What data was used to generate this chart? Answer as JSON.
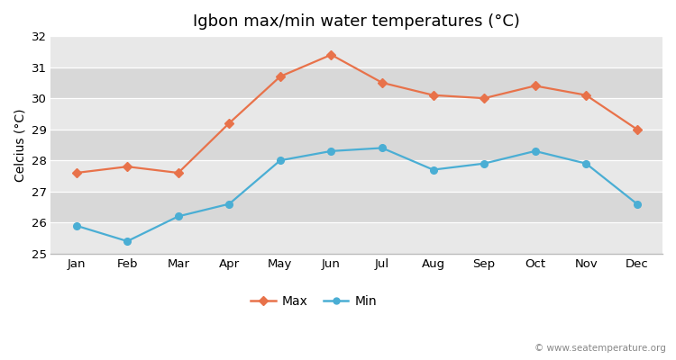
{
  "title": "Igbon max/min water temperatures (°C)",
  "xlabel": "",
  "ylabel": "Celcius (°C)",
  "months": [
    "Jan",
    "Feb",
    "Mar",
    "Apr",
    "May",
    "Jun",
    "Jul",
    "Aug",
    "Sep",
    "Oct",
    "Nov",
    "Dec"
  ],
  "max_temps": [
    27.6,
    27.8,
    27.6,
    29.2,
    30.7,
    31.4,
    30.5,
    30.1,
    30.0,
    30.4,
    30.1,
    29.0
  ],
  "min_temps": [
    25.9,
    25.4,
    26.2,
    26.6,
    28.0,
    28.3,
    28.4,
    27.7,
    27.9,
    28.3,
    27.9,
    26.6
  ],
  "max_color": "#e8724a",
  "min_color": "#4aaed4",
  "fig_bg_color": "#ffffff",
  "plot_bg_color": "#e8e8e8",
  "band_color_dark": "#d8d8d8",
  "band_color_light": "#e8e8e8",
  "grid_color": "#ffffff",
  "ylim": [
    25,
    32
  ],
  "yticks": [
    25,
    26,
    27,
    28,
    29,
    30,
    31,
    32
  ],
  "title_fontsize": 13,
  "axis_label_fontsize": 10,
  "tick_fontsize": 9.5,
  "legend_fontsize": 10,
  "watermark": "© www.seatemperature.org"
}
